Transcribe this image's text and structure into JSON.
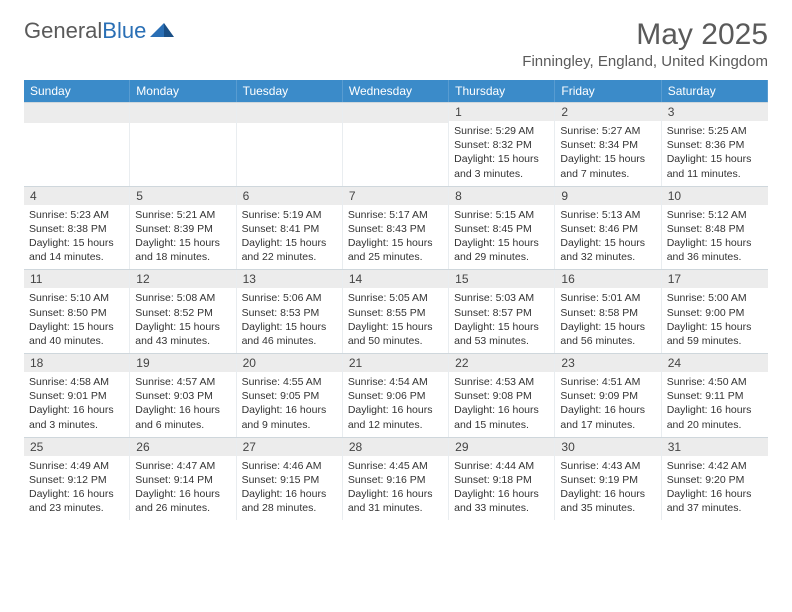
{
  "logo": {
    "general": "General",
    "blue": "Blue"
  },
  "title": "May 2025",
  "location": "Finningley, England, United Kingdom",
  "colors": {
    "header_bg": "#3b8bc9",
    "header_text": "#ffffff",
    "daynum_bg": "#ececec",
    "border": "#cfd7dc",
    "text": "#333333",
    "logo_gray": "#5a5a5a",
    "logo_blue": "#2a6fb5"
  },
  "dow": [
    "Sunday",
    "Monday",
    "Tuesday",
    "Wednesday",
    "Thursday",
    "Friday",
    "Saturday"
  ],
  "month": {
    "year": 2025,
    "month": 5,
    "first_weekday_index": 4,
    "days_in_month": 31
  },
  "days": {
    "1": {
      "sunrise": "5:29 AM",
      "sunset": "8:32 PM",
      "daylight": "15 hours and 3 minutes."
    },
    "2": {
      "sunrise": "5:27 AM",
      "sunset": "8:34 PM",
      "daylight": "15 hours and 7 minutes."
    },
    "3": {
      "sunrise": "5:25 AM",
      "sunset": "8:36 PM",
      "daylight": "15 hours and 11 minutes."
    },
    "4": {
      "sunrise": "5:23 AM",
      "sunset": "8:38 PM",
      "daylight": "15 hours and 14 minutes."
    },
    "5": {
      "sunrise": "5:21 AM",
      "sunset": "8:39 PM",
      "daylight": "15 hours and 18 minutes."
    },
    "6": {
      "sunrise": "5:19 AM",
      "sunset": "8:41 PM",
      "daylight": "15 hours and 22 minutes."
    },
    "7": {
      "sunrise": "5:17 AM",
      "sunset": "8:43 PM",
      "daylight": "15 hours and 25 minutes."
    },
    "8": {
      "sunrise": "5:15 AM",
      "sunset": "8:45 PM",
      "daylight": "15 hours and 29 minutes."
    },
    "9": {
      "sunrise": "5:13 AM",
      "sunset": "8:46 PM",
      "daylight": "15 hours and 32 minutes."
    },
    "10": {
      "sunrise": "5:12 AM",
      "sunset": "8:48 PM",
      "daylight": "15 hours and 36 minutes."
    },
    "11": {
      "sunrise": "5:10 AM",
      "sunset": "8:50 PM",
      "daylight": "15 hours and 40 minutes."
    },
    "12": {
      "sunrise": "5:08 AM",
      "sunset": "8:52 PM",
      "daylight": "15 hours and 43 minutes."
    },
    "13": {
      "sunrise": "5:06 AM",
      "sunset": "8:53 PM",
      "daylight": "15 hours and 46 minutes."
    },
    "14": {
      "sunrise": "5:05 AM",
      "sunset": "8:55 PM",
      "daylight": "15 hours and 50 minutes."
    },
    "15": {
      "sunrise": "5:03 AM",
      "sunset": "8:57 PM",
      "daylight": "15 hours and 53 minutes."
    },
    "16": {
      "sunrise": "5:01 AM",
      "sunset": "8:58 PM",
      "daylight": "15 hours and 56 minutes."
    },
    "17": {
      "sunrise": "5:00 AM",
      "sunset": "9:00 PM",
      "daylight": "15 hours and 59 minutes."
    },
    "18": {
      "sunrise": "4:58 AM",
      "sunset": "9:01 PM",
      "daylight": "16 hours and 3 minutes."
    },
    "19": {
      "sunrise": "4:57 AM",
      "sunset": "9:03 PM",
      "daylight": "16 hours and 6 minutes."
    },
    "20": {
      "sunrise": "4:55 AM",
      "sunset": "9:05 PM",
      "daylight": "16 hours and 9 minutes."
    },
    "21": {
      "sunrise": "4:54 AM",
      "sunset": "9:06 PM",
      "daylight": "16 hours and 12 minutes."
    },
    "22": {
      "sunrise": "4:53 AM",
      "sunset": "9:08 PM",
      "daylight": "16 hours and 15 minutes."
    },
    "23": {
      "sunrise": "4:51 AM",
      "sunset": "9:09 PM",
      "daylight": "16 hours and 17 minutes."
    },
    "24": {
      "sunrise": "4:50 AM",
      "sunset": "9:11 PM",
      "daylight": "16 hours and 20 minutes."
    },
    "25": {
      "sunrise": "4:49 AM",
      "sunset": "9:12 PM",
      "daylight": "16 hours and 23 minutes."
    },
    "26": {
      "sunrise": "4:47 AM",
      "sunset": "9:14 PM",
      "daylight": "16 hours and 26 minutes."
    },
    "27": {
      "sunrise": "4:46 AM",
      "sunset": "9:15 PM",
      "daylight": "16 hours and 28 minutes."
    },
    "28": {
      "sunrise": "4:45 AM",
      "sunset": "9:16 PM",
      "daylight": "16 hours and 31 minutes."
    },
    "29": {
      "sunrise": "4:44 AM",
      "sunset": "9:18 PM",
      "daylight": "16 hours and 33 minutes."
    },
    "30": {
      "sunrise": "4:43 AM",
      "sunset": "9:19 PM",
      "daylight": "16 hours and 35 minutes."
    },
    "31": {
      "sunrise": "4:42 AM",
      "sunset": "9:20 PM",
      "daylight": "16 hours and 37 minutes."
    }
  },
  "labels": {
    "sunrise": "Sunrise: ",
    "sunset": "Sunset: ",
    "daylight": "Daylight: "
  }
}
